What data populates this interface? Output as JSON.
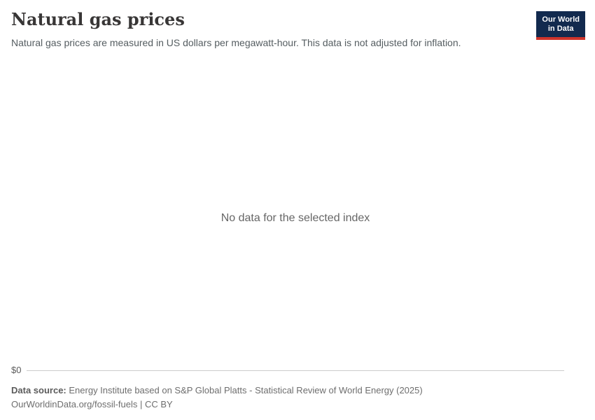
{
  "header": {
    "title": "Natural gas prices",
    "subtitle": "Natural gas prices are measured in US dollars per megawatt-hour. This data is not adjusted for inflation."
  },
  "logo": {
    "line1": "Our World",
    "line2": "in Data"
  },
  "chart": {
    "no_data_message": "No data for the selected index",
    "y_axis": {
      "tick_label": "$0"
    }
  },
  "chart_data": {
    "type": "line",
    "title": "Natural gas prices",
    "subtitle": "Natural gas prices are measured in US dollars per megawatt-hour. This data is not adjusted for inflation.",
    "series": [],
    "x": [],
    "y_axis_tick_labels": [
      "$0"
    ],
    "grid": false,
    "legend_position": "none",
    "no_data_message": "No data for the selected index"
  },
  "footer": {
    "data_source_label": "Data source:",
    "data_source_text": "Energy Institute based on S&P Global Platts - Statistical Review of World Energy (2025)",
    "url_text": "OurWorldinData.org/fossil-fuels",
    "separator": " | ",
    "license_text": "CC BY"
  },
  "theme": {
    "title-color": "#383636",
    "subtitle-color": "#555d61",
    "logo-bg": "#122a4e",
    "logo-accent": "#cf342b",
    "nodata-color": "#666666",
    "tick-color": "#5b5b5b",
    "axis-line-color": "#cccccc",
    "footer-color": "#6e6e6e",
    "footer-label-color": "#5b5b5b"
  }
}
